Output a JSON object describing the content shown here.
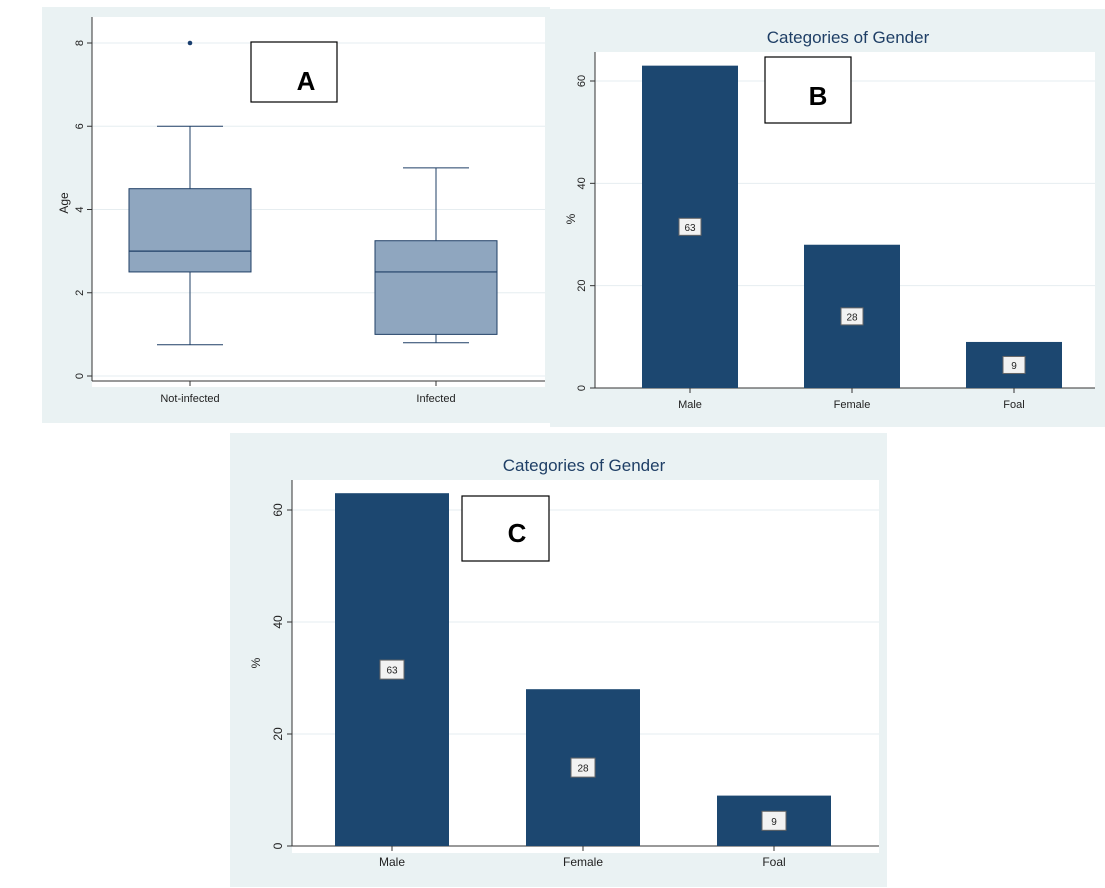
{
  "panels": {
    "a_label": "A",
    "b_label": "B",
    "c_label": "C"
  },
  "chart_data": [
    {
      "panel": "A",
      "type": "box",
      "title": "",
      "xlabel": "",
      "ylabel": "Age",
      "ylim": [
        0,
        8
      ],
      "yticks": [
        0,
        2,
        4,
        6,
        8
      ],
      "categories": [
        "Not-infected",
        "Infected"
      ],
      "boxes": [
        {
          "category": "Not-infected",
          "whisker_low": 0.75,
          "q1": 2.5,
          "median": 3,
          "q3": 4.5,
          "whisker_high": 6,
          "outliers": [
            8
          ]
        },
        {
          "category": "Infected",
          "whisker_low": 0.8,
          "q1": 1,
          "median": 2.5,
          "q3": 3.25,
          "whisker_high": 5,
          "outliers": []
        }
      ],
      "colors": {
        "box": "#8fa6bf",
        "line": "#1f3f66",
        "outlier": "#1a3f6f",
        "plot_bg": "#ffffff",
        "frame_bg": "#eaf2f3",
        "grid": "#e6edf0"
      }
    },
    {
      "panel": "B",
      "type": "bar",
      "title": "Categories of Gender",
      "xlabel": "",
      "ylabel": "%",
      "ylim": [
        0,
        63
      ],
      "yticks": [
        0,
        20,
        40,
        60
      ],
      "categories": [
        "Male",
        "Female",
        "Foal"
      ],
      "values": [
        63,
        28,
        9
      ],
      "data_labels": [
        "63",
        "28",
        "9"
      ],
      "colors": {
        "bar": "#1c4770",
        "plot_bg": "#ffffff",
        "frame_bg": "#eaf2f3",
        "grid": "#e6edf0"
      }
    },
    {
      "panel": "C",
      "type": "bar",
      "title": "Categories of Gender",
      "xlabel": "",
      "ylabel": "%",
      "ylim": [
        0,
        63
      ],
      "yticks": [
        0,
        20,
        40,
        60
      ],
      "categories": [
        "Male",
        "Female",
        "Foal"
      ],
      "values": [
        63,
        28,
        9
      ],
      "data_labels": [
        "63",
        "28",
        "9"
      ],
      "colors": {
        "bar": "#1c4770",
        "plot_bg": "#ffffff",
        "frame_bg": "#eaf2f3",
        "grid": "#e6edf0"
      }
    }
  ]
}
